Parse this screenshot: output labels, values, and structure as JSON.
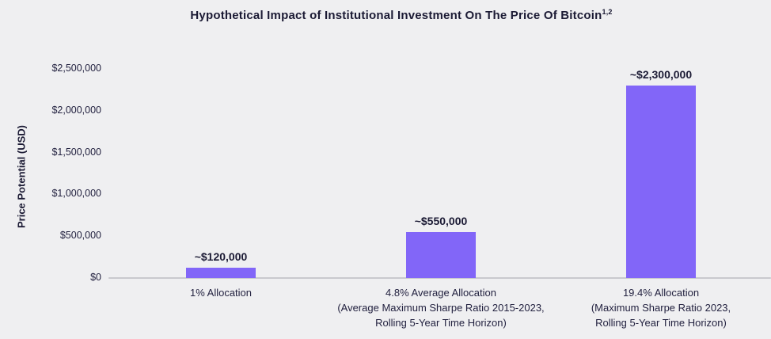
{
  "chart": {
    "title": "Hypothetical Impact of Institutional Investment On The Price Of Bitcoin",
    "title_superscript": "1,2",
    "ylabel": "Price Potential (USD)"
  },
  "chart_data": {
    "type": "bar",
    "title": "Hypothetical Impact of Institutional Investment On The Price Of Bitcoin 1,2",
    "xlabel": "",
    "ylabel": "Price Potential (USD)",
    "ylim": [
      0,
      2500000
    ],
    "grid": false,
    "legend": "none",
    "bar_color": "#8266f8",
    "background_color": "#efeff1",
    "text_color": "#1e1d38",
    "axis_line_color": "#c9c9ce",
    "y_ticks": [
      {
        "value": 0,
        "label": "$0"
      },
      {
        "value": 500000,
        "label": "$500,000"
      },
      {
        "value": 1000000,
        "label": "$1,000,000"
      },
      {
        "value": 1500000,
        "label": "$1,500,000"
      },
      {
        "value": 2000000,
        "label": "$2,000,000"
      },
      {
        "value": 2500000,
        "label": "$2,500,000"
      }
    ],
    "categories": [
      "1% Allocation",
      "4.8% Average Allocation (Average Maximum Sharpe Ratio 2015-2023, Rolling 5-Year Time Horizon)",
      "19.4% Allocation (Maximum Sharpe Ratio 2023, Rolling 5-Year Time Horizon)"
    ],
    "values": [
      120000,
      550000,
      2300000
    ],
    "bars": [
      {
        "value": 120000,
        "value_label": "~$120,000",
        "category_lines": [
          "1% Allocation"
        ]
      },
      {
        "value": 550000,
        "value_label": "~$550,000",
        "category_lines": [
          "4.8% Average Allocation",
          "(Average Maximum Sharpe Ratio 2015-2023,",
          "Rolling 5-Year Time Horizon)"
        ]
      },
      {
        "value": 2300000,
        "value_label": "~$2,300,000",
        "category_lines": [
          "19.4% Allocation",
          "(Maximum Sharpe Ratio 2023,",
          "Rolling 5-Year Time Horizon)"
        ]
      }
    ]
  }
}
